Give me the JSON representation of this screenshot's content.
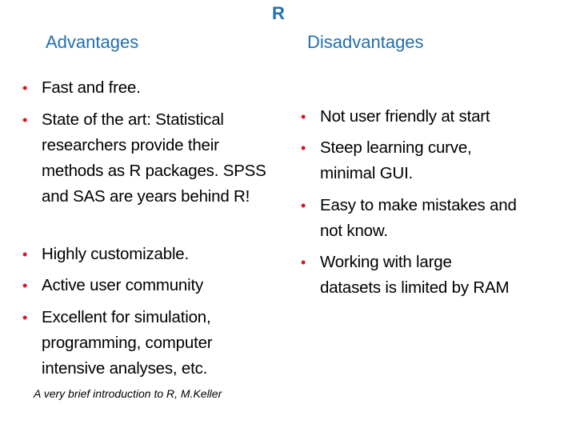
{
  "title": "R",
  "accent_color": "#1f6fb0",
  "bullet_color": "#e0101e",
  "advantages": {
    "heading": "Advantages",
    "items": [
      "Fast and free.",
      "State of the art: Statistical researchers provide their methods as R packages. SPSS and SAS are years behind R!",
      "Highly customizable.",
      "Active user community",
      "Excellent for simulation, programming, computer intensive analyses, etc."
    ]
  },
  "disadvantages": {
    "heading": "Disadvantages",
    "items": [
      "Not user friendly at start",
      "Steep learning curve, minimal GUI.",
      "Easy to make mistakes and not know.",
      "Working with large datasets is limited by RAM"
    ]
  },
  "footer": "A very brief introduction to R, M.Keller"
}
